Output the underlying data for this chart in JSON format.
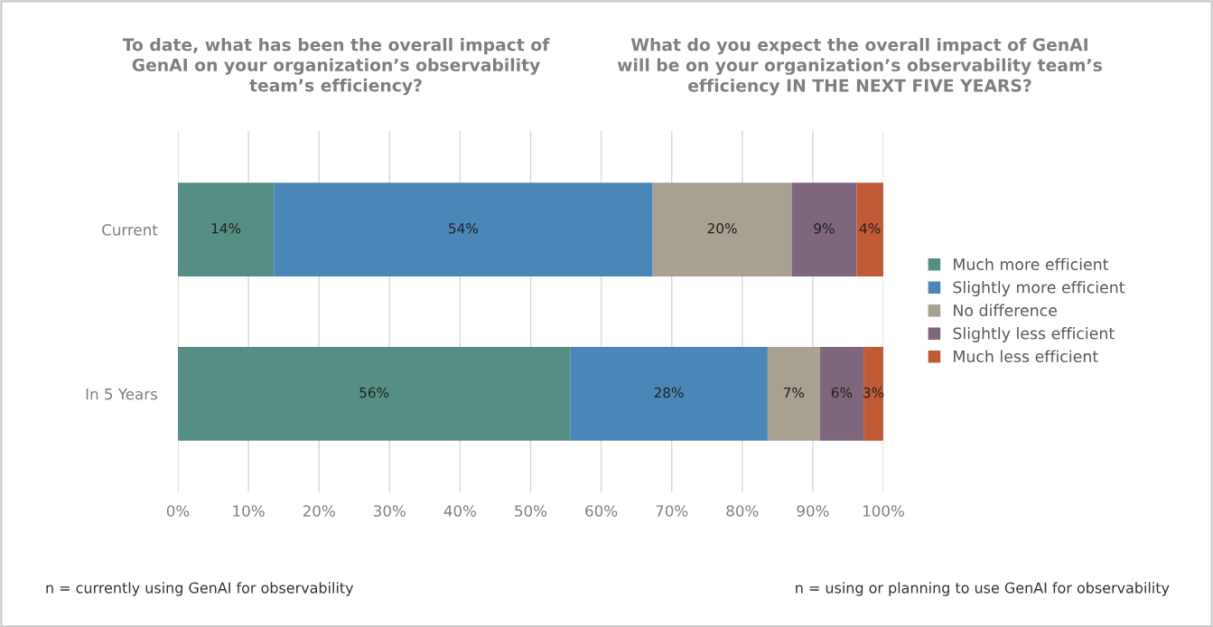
{
  "chart_data": {
    "type": "bar",
    "orientation": "horizontal",
    "stacked": true,
    "title": "To date, what has been the overall impact of\nGenAI on your organization’s observability\nteam’s efficiency?",
    "subtitle": "What do you expect the overall impact of GenAI\nwill be on your organization’s observability team’s\nefficiency IN THE NEXT FIVE YEARS?",
    "categories": [
      "Current",
      "In 5 Years"
    ],
    "series": [
      {
        "name": "Much more efficient",
        "color": "#558f84",
        "values": [
          13.6,
          55.6
        ],
        "value_labels": [
          "14%",
          "56%"
        ]
      },
      {
        "name": "Slightly more efficient",
        "color": "#4a87b8",
        "values": [
          53.7,
          28.0
        ],
        "value_labels": [
          "54%",
          "28%"
        ]
      },
      {
        "name": "No difference",
        "color": "#a8a090",
        "values": [
          19.7,
          7.4
        ],
        "value_labels": [
          "20%",
          "7%"
        ]
      },
      {
        "name": "Slightly less efficient",
        "color": "#7e667c",
        "values": [
          9.2,
          6.2
        ],
        "value_labels": [
          "9%",
          "6%"
        ]
      },
      {
        "name": "Much less efficient",
        "color": "#c15a36",
        "values": [
          3.8,
          2.8
        ],
        "value_labels": [
          "4%",
          "3%"
        ]
      }
    ],
    "xlim": [
      0,
      100
    ],
    "xticks": [
      {
        "value": 0,
        "label": "0%"
      },
      {
        "value": 10,
        "label": "10%"
      },
      {
        "value": 20,
        "label": "20%"
      },
      {
        "value": 30,
        "label": "30%"
      },
      {
        "value": 40,
        "label": "40%"
      },
      {
        "value": 50,
        "label": "50%"
      },
      {
        "value": 60,
        "label": "60%"
      },
      {
        "value": 70,
        "label": "70%"
      },
      {
        "value": 80,
        "label": "80%"
      },
      {
        "value": 90,
        "label": "90%"
      },
      {
        "value": 100,
        "label": "100%"
      }
    ],
    "grid": "x",
    "legend": "right",
    "annotations": [
      "n = currently using GenAI for observability",
      "n = using or planning to use GenAI for observability"
    ]
  }
}
